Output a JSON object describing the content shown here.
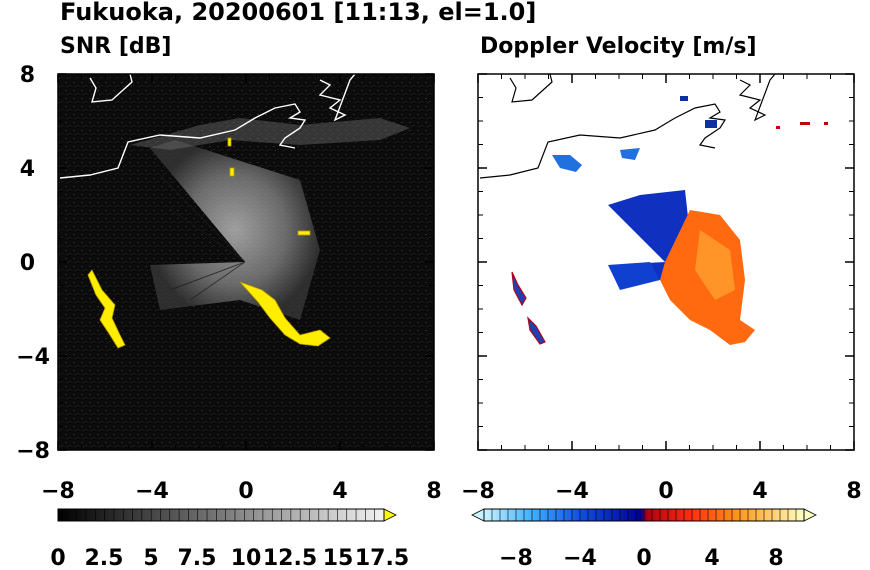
{
  "figure": {
    "title": "Fukuoka, 20200601 [11:13, el=1.0]"
  },
  "chart_data": [
    {
      "type": "heatmap",
      "title": "SNR [dB]",
      "xlim": [
        -8,
        8
      ],
      "ylim": [
        -8,
        8
      ],
      "x_ticks": [
        "−8",
        "−4",
        "0",
        "4",
        "8"
      ],
      "y_ticks": [
        "8",
        "4",
        "0",
        "−4",
        "−8"
      ],
      "colorbar": {
        "range": [
          0,
          17.5
        ],
        "extend": "max",
        "tick_labels": [
          "0",
          "2.5",
          "5",
          "7.5",
          "10",
          "12.5",
          "15",
          "17.5"
        ],
        "colors": {
          "low": "#000000",
          "high": "#f0f0f0",
          "extend": "#ffff00"
        }
      }
    },
    {
      "type": "heatmap",
      "title": "Doppler Velocity [m/s]",
      "xlim": [
        -8,
        8
      ],
      "ylim": [
        -8,
        8
      ],
      "x_ticks": [
        "−8",
        "−4",
        "0",
        "4",
        "8"
      ],
      "y_ticks": [
        "8",
        "4",
        "0",
        "−4",
        "−8"
      ],
      "colorbar": {
        "range": [
          -10,
          10
        ],
        "extend": "both",
        "tick_labels": [
          "−8",
          "−4",
          "0",
          "4",
          "8"
        ],
        "colors": {
          "negative_far": "#c0f0ff",
          "negative_near": "#0010a0",
          "positive_near": "#c00010",
          "positive_far": "#ffffc0"
        }
      }
    }
  ]
}
